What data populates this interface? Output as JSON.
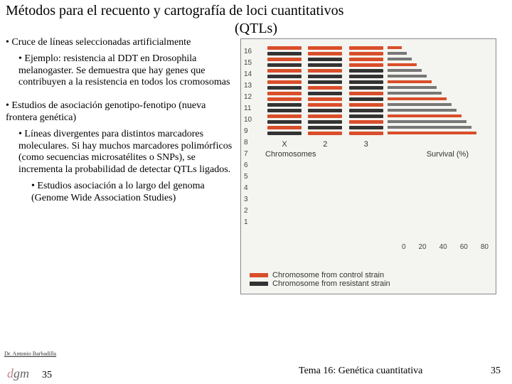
{
  "title_line1": "Métodos para el recuento y cartografía de loci cuantitativos",
  "title_line2": "(QTLs)",
  "bullets": {
    "b1a": "• Cruce de líneas seleccionadas artificialmente",
    "b2a": "• Ejemplo: resistencia al DDT en Drosophila melanogaster. Se demuestra que hay genes que contribuyen a la resistencia en todos los cromosomas",
    "b1b": "• Estudios de asociación genotipo-fenotipo (nueva frontera genética)",
    "b2b": "• Líneas divergentes para distintos marcadores moleculares. Si hay muchos marcadores polimórficos (como secuencias microsatélites o SNPs), se incrementa la probabilidad de detectar QTLs ligados.",
    "b3a": "• Estudios asociación a lo largo del genoma (Genome Wide Association Studies)"
  },
  "figure": {
    "y_ticks": [
      "16",
      "15",
      "14",
      "13",
      "12",
      "11",
      "10",
      "9",
      "8",
      "7",
      "6",
      "5",
      "4",
      "3",
      "2",
      "1"
    ],
    "chrom_labels": [
      "X",
      "2",
      "3"
    ],
    "xaxis_left": "Chromosomes",
    "xaxis_right": "Survival (%)",
    "survival_ticks": [
      "0",
      "20",
      "40",
      "60",
      "80"
    ],
    "legend_control": "Chromosome from control strain",
    "legend_resistant": "Chromosome from resistant strain",
    "colors": {
      "control": "#d94e2a",
      "resistant": "#333333",
      "bg": "#f4f4f0",
      "border": "#888888"
    },
    "patterns": {
      "X": [
        "c",
        "r",
        "c",
        "r",
        "c",
        "r",
        "c",
        "r",
        "c",
        "c",
        "r",
        "r",
        "c",
        "r",
        "c",
        "r"
      ],
      "2": [
        "c",
        "c",
        "r",
        "r",
        "c",
        "r",
        "r",
        "c",
        "r",
        "c",
        "c",
        "r",
        "c",
        "r",
        "r",
        "c"
      ],
      "3": [
        "c",
        "c",
        "c",
        "c",
        "r",
        "r",
        "r",
        "r",
        "c",
        "r",
        "c",
        "r",
        "r",
        "c",
        "r",
        "c"
      ]
    }
  },
  "footer": {
    "author": "Dr. Antonio Barbadilla",
    "logo": "dgm",
    "page_left": "35",
    "topic": "Tema 16: Genética cuantitativa",
    "page_right": "35"
  }
}
